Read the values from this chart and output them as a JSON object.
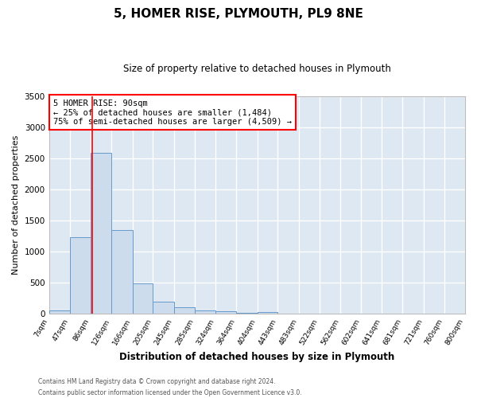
{
  "title": "5, HOMER RISE, PLYMOUTH, PL9 8NE",
  "subtitle": "Size of property relative to detached houses in Plymouth",
  "xlabel": "Distribution of detached houses by size in Plymouth",
  "ylabel": "Number of detached properties",
  "bar_color": "#ccdcec",
  "bar_edgecolor": "#6699cc",
  "bg_color": "#dde8f2",
  "grid_color": "#ffffff",
  "fig_bg_color": "#ffffff",
  "red_line_x": 90,
  "annotation_title": "5 HOMER RISE: 90sqm",
  "annotation_line1": "← 25% of detached houses are smaller (1,484)",
  "annotation_line2": "75% of semi-detached houses are larger (4,509) →",
  "bins": [
    7,
    47,
    86,
    126,
    166,
    205,
    245,
    285,
    324,
    364,
    404,
    443,
    483,
    522,
    562,
    602,
    641,
    681,
    721,
    760,
    800
  ],
  "counts": [
    50,
    1230,
    2590,
    1340,
    490,
    195,
    110,
    50,
    35,
    20,
    30,
    0,
    0,
    0,
    0,
    0,
    0,
    0,
    0,
    0
  ],
  "ylim": [
    0,
    3500
  ],
  "yticks": [
    0,
    500,
    1000,
    1500,
    2000,
    2500,
    3000,
    3500
  ],
  "footer1": "Contains HM Land Registry data © Crown copyright and database right 2024.",
  "footer2": "Contains public sector information licensed under the Open Government Licence v3.0."
}
